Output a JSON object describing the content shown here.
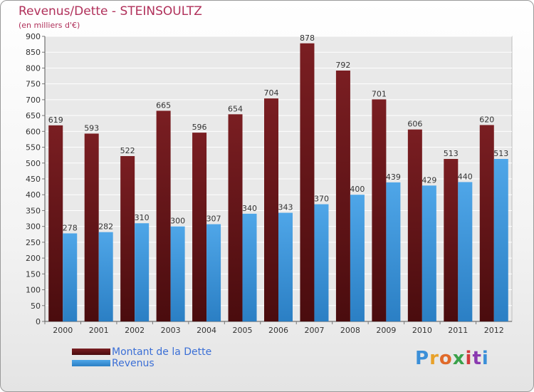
{
  "title": "Revenus/Dette - STEINSOULTZ",
  "subtitle": "(en milliers d'€)",
  "legend": {
    "dette_label": "Montant de la Dette",
    "revenus_label": "Revenus"
  },
  "logo": {
    "text": "Proxiti"
  },
  "colors": {
    "dette": "#7a1e22",
    "dette_dark": "#4a0c0e",
    "revenus": "#4fa6e8",
    "revenus_dark": "#2b7fc4",
    "title": "#b0305a",
    "legend_text": "#3b6fd6"
  },
  "chart_data": {
    "type": "bar",
    "title": "Revenus/Dette - STEINSOULTZ",
    "ylabel": "(en milliers d'€)",
    "categories": [
      "2000",
      "2001",
      "2002",
      "2003",
      "2004",
      "2005",
      "2006",
      "2007",
      "2008",
      "2009",
      "2010",
      "2011",
      "2012"
    ],
    "series": [
      {
        "name": "Montant de la Dette",
        "values": [
          619,
          593,
          522,
          665,
          596,
          654,
          704,
          878,
          792,
          701,
          606,
          513,
          620
        ]
      },
      {
        "name": "Revenus",
        "values": [
          278,
          282,
          310,
          300,
          307,
          340,
          343,
          370,
          400,
          439,
          429,
          440,
          513
        ]
      }
    ],
    "ylim": [
      0,
      900
    ],
    "yticks": [
      0,
      50,
      100,
      150,
      200,
      250,
      300,
      350,
      400,
      450,
      500,
      550,
      600,
      650,
      700,
      750,
      800,
      850,
      900
    ],
    "grid": true,
    "legend_position": "bottom-left"
  }
}
